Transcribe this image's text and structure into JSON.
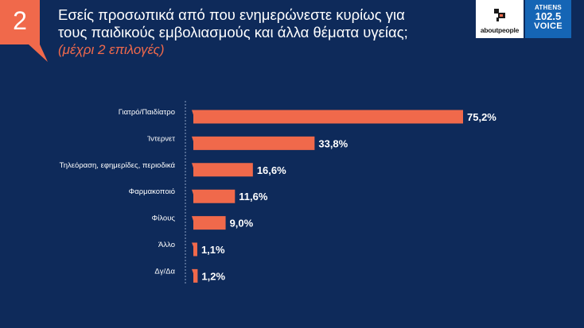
{
  "slide_number": "2",
  "title_lines": [
    "Εσείς προσωπικά από που ενημερώνεστε κυρίως για",
    "τους παιδικούς εμβολιασμούς και άλλα θέματα υγείας;"
  ],
  "subtitle": "(μέχρι 2 επιλογές)",
  "logos": {
    "about": "aboutpeople",
    "athens_line1": "ATHENS",
    "athens_line2": "102.5",
    "athens_line3": "VOICE"
  },
  "colors": {
    "background": "#0e2a5a",
    "bar": "#f0694b",
    "accent": "#f0694b"
  },
  "chart_data": {
    "type": "bar",
    "orientation": "horizontal",
    "title": "",
    "xlabel": "",
    "ylabel": "",
    "categories": [
      "Γιατρό/Παιδίατρο",
      "Ίντερνετ",
      "Τηλεόραση, εφημερίδες, περιοδικά",
      "Φαρμακοποιό",
      "Φίλους",
      "Άλλο",
      "Δγ/Δα"
    ],
    "values": [
      75.2,
      33.8,
      16.6,
      11.6,
      9.0,
      1.1,
      1.2
    ],
    "value_labels": [
      "75,2%",
      "33,8%",
      "16,6%",
      "11,6%",
      "9,0%",
      "1,1%",
      "1,2%"
    ],
    "xlim": [
      0,
      75.2
    ],
    "grid": false,
    "legend": "none"
  }
}
